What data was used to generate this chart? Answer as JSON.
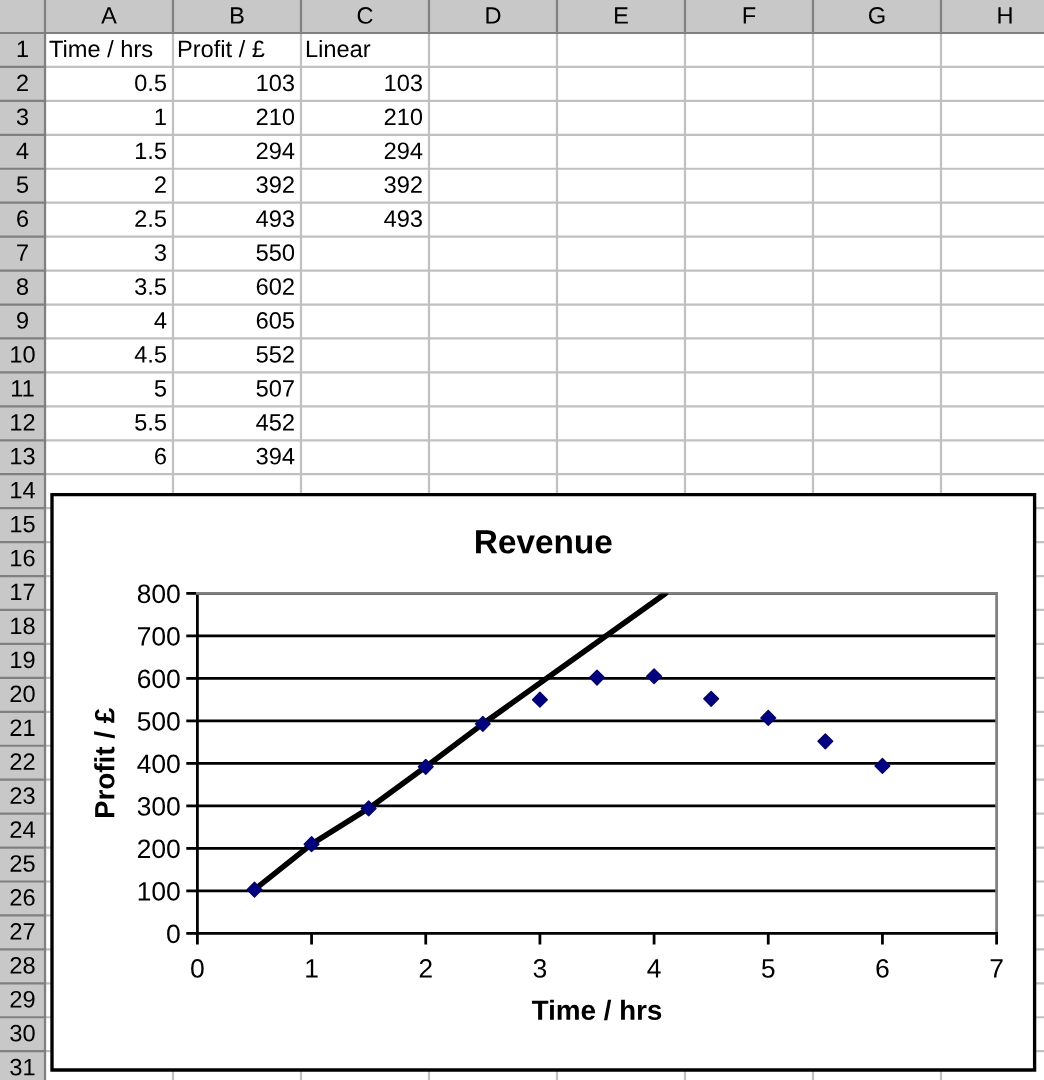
{
  "chart_data": {
    "type": "scatter",
    "title": "Revenue",
    "xlabel": "Time / hrs",
    "ylabel": "Profit / £",
    "xlim": [
      0,
      7
    ],
    "xticks": [
      0,
      1,
      2,
      3,
      4,
      5,
      6,
      7
    ],
    "ylim": [
      0,
      800
    ],
    "yticks": [
      0,
      100,
      200,
      300,
      400,
      500,
      600,
      700,
      800
    ],
    "grid": "y",
    "series": [
      {
        "marker": "diamond",
        "color": "#000080",
        "x": [
          0.5,
          1,
          1.5,
          2,
          2.5,
          3,
          3.5,
          4,
          4.5,
          5,
          5.5,
          6
        ],
        "values": [
          103,
          210,
          294,
          392,
          493,
          550,
          602,
          605,
          552,
          507,
          452,
          394
        ]
      },
      {
        "type": "line",
        "marker": "none",
        "line_style": "solid",
        "color": "#000000",
        "x": [
          0.5,
          1,
          1.5,
          2,
          2.5,
          4.1
        ],
        "values": [
          103,
          210,
          294,
          392,
          493,
          800
        ]
      }
    ],
    "annotations": [
      "A",
      "B",
      "C",
      "D",
      "E",
      "F",
      "G",
      "H",
      "1",
      "2",
      "3",
      "4",
      "5",
      "6",
      "7",
      "8",
      "9",
      "10",
      "11",
      "12",
      "13",
      "14",
      "15",
      "16",
      "17",
      "18",
      "19",
      "20",
      "21",
      "22",
      "23",
      "24",
      "25",
      "26",
      "27",
      "28",
      "29",
      "30",
      "31",
      "Time / hrs",
      "Profit / £",
      "Linear",
      "0.5",
      "103",
      "103",
      "1",
      "210",
      "210",
      "1.5",
      "294",
      "294",
      "2",
      "392",
      "392",
      "2.5",
      "493",
      "493",
      "3",
      "550",
      "3.5",
      "602",
      "4",
      "605",
      "4.5",
      "552",
      "5",
      "507",
      "5.5",
      "452",
      "6",
      "394"
    ]
  }
}
